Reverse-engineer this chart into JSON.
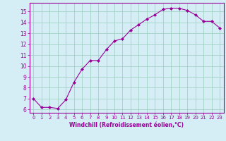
{
  "x": [
    0,
    1,
    2,
    3,
    4,
    5,
    6,
    7,
    8,
    9,
    10,
    11,
    12,
    13,
    14,
    15,
    16,
    17,
    18,
    19,
    20,
    21,
    22,
    23
  ],
  "y": [
    7.0,
    6.2,
    6.2,
    6.1,
    6.9,
    8.5,
    9.7,
    10.5,
    10.5,
    11.5,
    12.3,
    12.5,
    13.3,
    13.8,
    14.3,
    14.7,
    15.2,
    15.3,
    15.3,
    15.1,
    14.7,
    14.1,
    14.1,
    13.5
  ],
  "line_color": "#990099",
  "marker": "D",
  "marker_size": 2.0,
  "xlabel": "Windchill (Refroidissement éolien,°C)",
  "xlabel_color": "#990099",
  "ylabel_ticks": [
    6,
    7,
    8,
    9,
    10,
    11,
    12,
    13,
    14,
    15
  ],
  "xlim": [
    -0.5,
    23.5
  ],
  "ylim": [
    5.7,
    15.8
  ],
  "background_color": "#d5eef5",
  "grid_color": "#99ccbb",
  "tick_color": "#990099",
  "spine_color": "#990099",
  "xlabel_fontsize": 5.5,
  "xtick_fontsize": 5.0,
  "ytick_fontsize": 5.5
}
